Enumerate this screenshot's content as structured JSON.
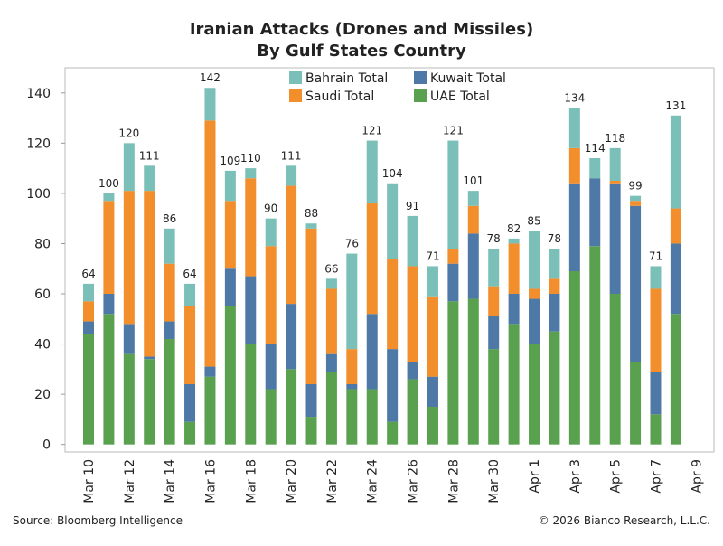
{
  "chart_data": {
    "type": "stacked-bar",
    "title": "Iranian Attacks (Drones and Missiles)",
    "subtitle": "By Gulf States Country",
    "source": "Source: Bloomberg Intelligence",
    "copyright": "© 2026 Bianco Research, L.L.C.",
    "categories": [
      "Mar 10",
      null,
      "Mar 12",
      null,
      "Mar 14",
      null,
      "Mar 16",
      null,
      "Mar 18",
      null,
      "Mar 20",
      null,
      "Mar 22",
      null,
      "Mar 24",
      null,
      "Mar 26",
      null,
      "Mar 28",
      null,
      "Mar 30",
      null,
      "Apr 1",
      null,
      "Apr 3",
      null,
      "Apr 5",
      null,
      "Apr 7",
      null,
      "Apr 9"
    ],
    "series": [
      {
        "name": "UAE Total",
        "color": "#59a14f",
        "values": [
          44,
          52,
          36,
          34,
          42,
          9,
          27,
          55,
          40,
          22,
          30,
          11,
          29,
          22,
          22,
          9,
          26,
          15,
          57,
          58,
          38,
          48,
          40,
          45,
          69,
          79,
          60,
          33,
          12,
          52,
          null
        ]
      },
      {
        "name": "Kuwait Total",
        "color": "#4e79a7",
        "values": [
          5,
          8,
          12,
          1,
          7,
          15,
          4,
          15,
          27,
          18,
          26,
          13,
          7,
          2,
          30,
          29,
          7,
          12,
          15,
          26,
          13,
          12,
          18,
          15,
          35,
          27,
          44,
          62,
          17,
          28,
          null
        ]
      },
      {
        "name": "Saudi Total",
        "color": "#f28e2b",
        "values": [
          8,
          37,
          53,
          66,
          23,
          31,
          98,
          27,
          39,
          39,
          47,
          62,
          26,
          14,
          44,
          36,
          38,
          32,
          6,
          11,
          12,
          20,
          4,
          6,
          14,
          0,
          1,
          2,
          33,
          14,
          null
        ]
      },
      {
        "name": "Bahrain Total",
        "color": "#7bbfb9",
        "values": [
          7,
          3,
          19,
          10,
          14,
          9,
          13,
          12,
          4,
          11,
          8,
          2,
          4,
          38,
          25,
          30,
          20,
          12,
          43,
          6,
          15,
          2,
          23,
          12,
          16,
          8,
          13,
          2,
          9,
          37,
          null
        ]
      }
    ],
    "totals": [
      64,
      100,
      120,
      111,
      86,
      64,
      142,
      109,
      110,
      90,
      111,
      88,
      66,
      76,
      121,
      104,
      91,
      71,
      121,
      101,
      78,
      82,
      85,
      78,
      134,
      114,
      118,
      99,
      71,
      131,
      null
    ],
    "ylim": [
      -3,
      150
    ],
    "yticks": [
      0,
      20,
      40,
      60,
      80,
      100,
      120,
      140
    ]
  }
}
